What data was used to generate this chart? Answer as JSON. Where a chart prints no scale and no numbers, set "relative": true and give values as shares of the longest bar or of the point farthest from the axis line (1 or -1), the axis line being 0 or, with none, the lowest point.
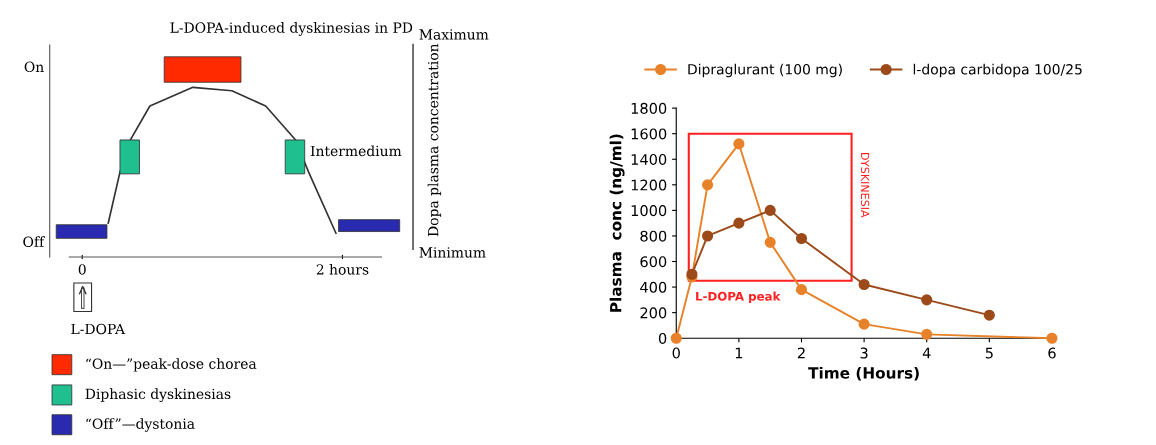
{
  "chart_data": [
    {
      "type": "line",
      "relative": true,
      "title": "L-DOPA-induced dyskinesias in PD",
      "ylabel": "Dopa plasma concentration",
      "xlim": [
        -0.25,
        2.3
      ],
      "xticks": [
        0,
        {
          "value": 2,
          "label": "2 hours"
        }
      ],
      "legend": "bottom",
      "annotations": [
        "On",
        "Off",
        "Maximum",
        "Minimum",
        "Intermedium",
        "L-DOPA"
      ],
      "series": [
        {
          "color": "#333333",
          "x": [
            0.2,
            0.29,
            0.37,
            0.52,
            0.85,
            1.15,
            1.41,
            1.64,
            1.74,
            1.95
          ],
          "values": [
            0.2,
            0.5,
            0.69,
            0.89,
            1,
            0.98,
            0.89,
            0.69,
            0.5,
            0.14
          ]
        },
        {
          "name": "“On—”peak-dose chorea",
          "color": "#ff2a00"
        },
        {
          "name": "Diphasic dyskinesias",
          "color": "#1fbf8f"
        },
        {
          "name": "“Off”—dystonia",
          "color": "#2a2ab0"
        }
      ]
    },
    {
      "type": "line",
      "xlabel": "Time (Hours)",
      "ylabel": "Plasma  conc (ng/ml)",
      "xlim": [
        0,
        6
      ],
      "xticks": [
        0,
        1,
        2,
        3,
        4,
        5,
        6
      ],
      "ylim": [
        0,
        1800
      ],
      "yticks": [
        0,
        200,
        400,
        600,
        800,
        1000,
        1200,
        1400,
        1600,
        1800
      ],
      "marker": "circle",
      "grid": false,
      "legend": "top",
      "annotations": [
        "DYSKINESIA",
        "L-DOPA peak"
      ],
      "series": [
        {
          "name": "Dipraglurant (100 mg)",
          "color": "#e8822a",
          "x": [
            0,
            0.25,
            0.5,
            1,
            1.5,
            2,
            3,
            4,
            6
          ],
          "values": [
            0,
            480,
            1200,
            1520,
            750,
            380,
            110,
            30,
            0
          ]
        },
        {
          "name": "l-dopa carbidopa 100/25",
          "color": "#9c4a1a",
          "x": [
            0.25,
            0.5,
            1,
            1.5,
            2,
            3,
            4,
            5
          ],
          "values": [
            500,
            800,
            900,
            1000,
            780,
            420,
            300,
            180
          ]
        }
      ]
    }
  ]
}
